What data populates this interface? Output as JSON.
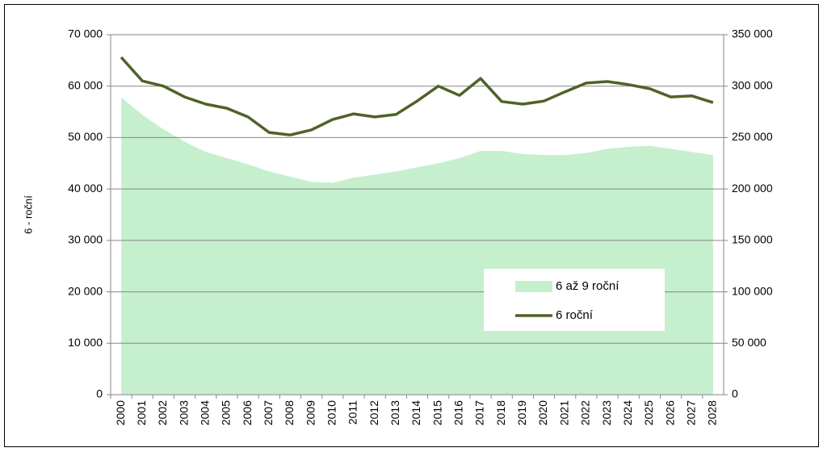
{
  "chart_data": {
    "type": "line",
    "ylabel": "6 - roční",
    "categories": [
      "2000",
      "2001",
      "2002",
      "2003",
      "2004",
      "2005",
      "2006",
      "2007",
      "2008",
      "2009",
      "2010",
      "2011",
      "2012",
      "2013",
      "2014",
      "2015",
      "2016",
      "2017",
      "2018",
      "2019",
      "2020",
      "2021",
      "2022",
      "2023",
      "2024",
      "2025",
      "2026",
      "2027",
      "2028"
    ],
    "series": [
      {
        "name": "6 až 9 roční",
        "type": "area",
        "axis": "y2",
        "color": "#c6efce",
        "values": [
          289000,
          272000,
          258000,
          246000,
          236000,
          230000,
          224000,
          217000,
          212000,
          207000,
          206000,
          211000,
          214000,
          217000,
          221000,
          225000,
          230000,
          237000,
          237000,
          234000,
          233000,
          233000,
          235000,
          239000,
          241000,
          242000,
          239000,
          236000,
          233000
        ]
      },
      {
        "name": "6 roční",
        "type": "line",
        "axis": "y",
        "color": "#4f6228",
        "values": [
          65600,
          61000,
          60000,
          57900,
          56500,
          55700,
          54000,
          51000,
          50500,
          51500,
          53500,
          54600,
          54000,
          54500,
          57100,
          60000,
          58200,
          61500,
          57000,
          56500,
          57100,
          58900,
          60600,
          60900,
          60300,
          59500,
          57900,
          58100,
          56800
        ]
      }
    ],
    "ylim": [
      0,
      70000
    ],
    "yticks": [
      0,
      {
        "value": 10000,
        "label": "10 000"
      },
      {
        "value": 20000,
        "label": "20 000"
      },
      {
        "value": 30000,
        "label": "30 000"
      },
      {
        "value": 40000,
        "label": "40 000"
      },
      {
        "value": 50000,
        "label": "50 000"
      },
      {
        "value": 60000,
        "label": "60 000"
      },
      {
        "value": 70000,
        "label": "70 000"
      }
    ],
    "y2lim": [
      0,
      350000
    ],
    "y2ticks": [
      0,
      {
        "value": 50000,
        "label": "50 000"
      },
      {
        "value": 100000,
        "label": "100 000"
      },
      {
        "value": 150000,
        "label": "150 000"
      },
      {
        "value": 200000,
        "label": "200 000"
      },
      {
        "value": 250000,
        "label": "250 000"
      },
      {
        "value": 300000,
        "label": "300 000"
      },
      {
        "value": 350000,
        "label": "350 000"
      }
    ],
    "grid": true,
    "legend": "right"
  }
}
